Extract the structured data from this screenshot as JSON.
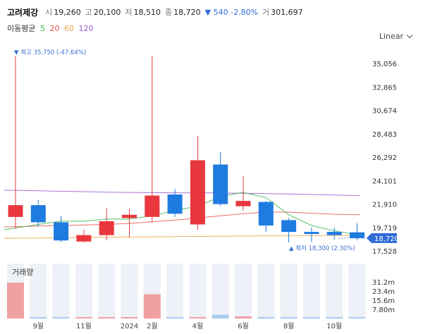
{
  "header": {
    "stock_name": "고려제강",
    "open_label": "시",
    "open": "19,260",
    "high_label": "고",
    "high": "20,100",
    "low_label": "저",
    "low": "18,510",
    "close_label": "종",
    "close": "18,720",
    "change": "▼ 540 -2.80%",
    "volume_label": "거",
    "volume": "301,697"
  },
  "ma": {
    "label": "이동평균",
    "p5": "5",
    "p20": "20",
    "p60": "60",
    "p120": "120",
    "colors": {
      "p5": "#3cb44b",
      "p20": "#e8554e",
      "p60": "#f0a24a",
      "p120": "#9b59d0"
    }
  },
  "scale_button": {
    "label": "Linear"
  },
  "annotations": {
    "high": "▼ 최고 35,750 (-47.64%)",
    "low": "▲ 최저 18,300 (2.30%)",
    "current_price": "18,720"
  },
  "volume_section": {
    "title": "거래량"
  },
  "colors": {
    "up": "#e8383d",
    "down": "#1e7be0",
    "up_vol": "#f0a0a3",
    "down_vol": "#a8cbee",
    "vol_bg": "#eef1f7"
  },
  "chart_data": {
    "type": "candlestick",
    "price_axis": {
      "ticks": [
        35056,
        32865,
        30674,
        28483,
        26292,
        24101,
        21910,
        19719,
        17528
      ],
      "tick_labels": [
        "35,056",
        "32,865",
        "30,674",
        "28,483",
        "26,292",
        "24,101",
        "21,910",
        "19,719",
        "17,528"
      ],
      "scale": "linear"
    },
    "candles": [
      {
        "open": 20700,
        "high": 35750,
        "low": 19600,
        "close": 21800
      },
      {
        "open": 21800,
        "high": 22300,
        "low": 19800,
        "close": 20200
      },
      {
        "open": 20200,
        "high": 20800,
        "low": 18350,
        "close": 18500
      },
      {
        "open": 18400,
        "high": 19500,
        "low": 18300,
        "close": 19000
      },
      {
        "open": 19000,
        "high": 21500,
        "low": 18500,
        "close": 20300
      },
      {
        "open": 20600,
        "high": 21500,
        "low": 18800,
        "close": 20900
      },
      {
        "open": 20700,
        "high": 35750,
        "low": 20200,
        "close": 22700
      },
      {
        "open": 22800,
        "high": 23300,
        "low": 20700,
        "close": 21000
      },
      {
        "open": 20000,
        "high": 28300,
        "low": 19500,
        "close": 26000
      },
      {
        "open": 25600,
        "high": 26800,
        "low": 21700,
        "close": 21900
      },
      {
        "open": 21700,
        "high": 24500,
        "low": 21300,
        "close": 22200
      },
      {
        "open": 22100,
        "high": 22200,
        "low": 19300,
        "close": 19900
      },
      {
        "open": 20400,
        "high": 20600,
        "low": 18300,
        "close": 19300
      },
      {
        "open": 19300,
        "high": 19700,
        "low": 18350,
        "close": 19100
      },
      {
        "open": 19300,
        "high": 19700,
        "low": 18600,
        "close": 19000
      },
      {
        "open": 19260,
        "high": 20100,
        "low": 18510,
        "close": 18720
      }
    ],
    "ma5": [
      19500,
      20000,
      20300,
      20300,
      20500,
      20500,
      20800,
      21300,
      21700,
      22600,
      23000,
      22500,
      20900,
      19900,
      19400,
      19000
    ],
    "ma20": [
      19750,
      19850,
      19900,
      19950,
      20000,
      20100,
      20250,
      20400,
      20600,
      20800,
      21000,
      21150,
      21150,
      21050,
      20950,
      20900
    ],
    "ma60": [
      18700,
      18730,
      18760,
      18790,
      18810,
      18820,
      18840,
      18860,
      18880,
      18900,
      18920,
      18930,
      18940,
      18950,
      18960,
      18970
    ],
    "ma120": [
      23200,
      23150,
      23100,
      23060,
      23020,
      22990,
      22970,
      22960,
      22960,
      22950,
      22920,
      22880,
      22840,
      22800,
      22750,
      22700
    ],
    "volume_axis": {
      "ticks": [
        "31.2m",
        "23.4m",
        "15.6m",
        "7.80m"
      ],
      "tick_values": [
        31.2,
        23.4,
        15.6,
        7.8
      ]
    },
    "volumes_m": [
      30.6,
      1.2,
      0.3,
      0.2,
      0.3,
      0.4,
      20.7,
      0.3,
      0.4,
      3.2,
      1.8,
      0.6,
      0.5,
      0.3,
      0.2,
      0.3
    ],
    "volume_up": [
      true,
      false,
      false,
      true,
      true,
      true,
      true,
      false,
      true,
      false,
      true,
      false,
      false,
      false,
      false,
      false
    ],
    "months": [
      {
        "label": "9월",
        "index": 1
      },
      {
        "label": "11월",
        "index": 3
      },
      {
        "label": "2024",
        "index": 5
      },
      {
        "label": "2월",
        "index": 6
      },
      {
        "label": "4월",
        "index": 8
      },
      {
        "label": "6월",
        "index": 10
      },
      {
        "label": "8월",
        "index": 12
      },
      {
        "label": "10월",
        "index": 14
      }
    ]
  }
}
